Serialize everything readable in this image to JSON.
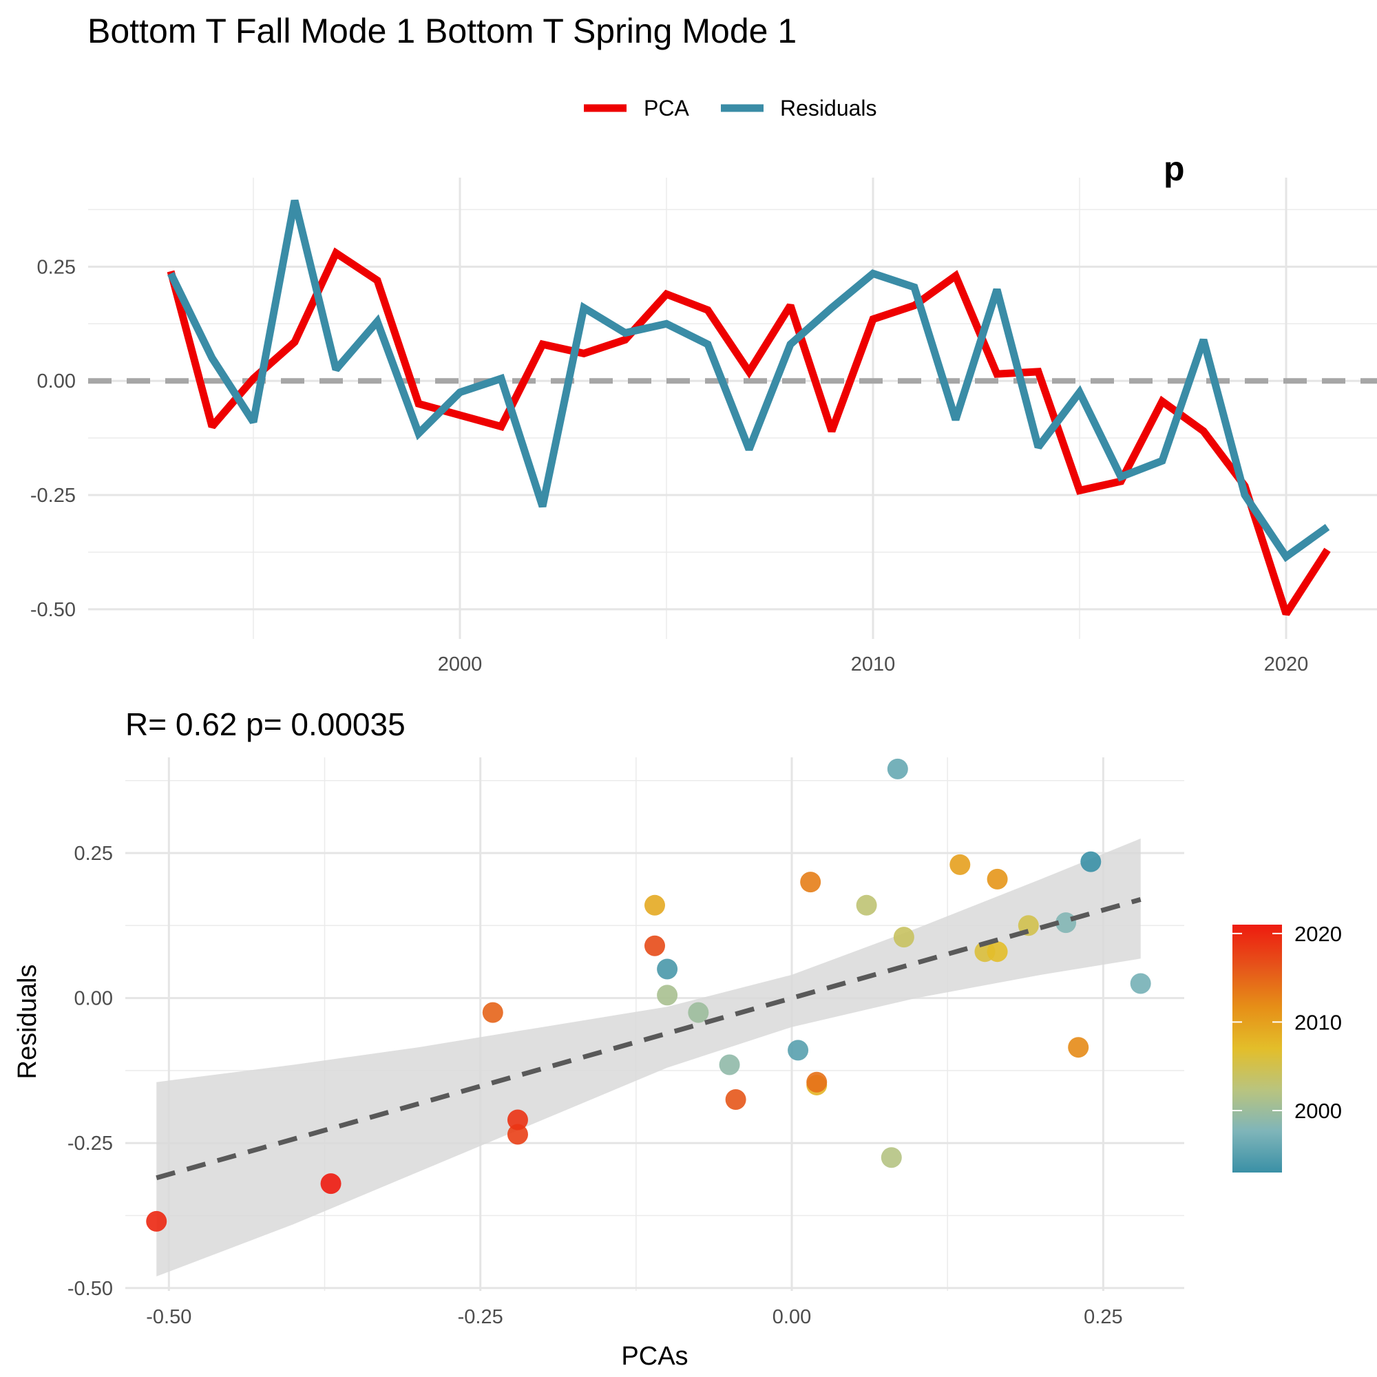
{
  "header": {
    "title": "Bottom T Fall Mode 1 Bottom T Spring Mode 1"
  },
  "chart_data": [
    {
      "type": "line",
      "title": "Bottom T Fall Mode 1 Bottom T Spring Mode 1",
      "xlabel": "",
      "ylabel": "",
      "grid": true,
      "legend_position": "top",
      "xlim": [
        1991,
        2022.2
      ],
      "ylim": [
        -0.565,
        0.445
      ],
      "x_ticks": [
        2000,
        2010,
        2020
      ],
      "x_tick_labels": [
        "2000",
        "2010",
        "2020"
      ],
      "y_ticks": [
        0.25,
        0.0,
        -0.25,
        -0.5
      ],
      "y_tick_labels": [
        "0.25",
        "0.00",
        "-0.25",
        "-0.50"
      ],
      "reference_line": {
        "y": 0,
        "style": "dashed",
        "color": "#a6a6a6"
      },
      "x": [
        1993,
        1994,
        1995,
        1996,
        1997,
        1998,
        1999,
        2000,
        2001,
        2002,
        2003,
        2004,
        2005,
        2006,
        2007,
        2008,
        2009,
        2010,
        2011,
        2012,
        2013,
        2014,
        2015,
        2016,
        2017,
        2018,
        2019,
        2020,
        2021
      ],
      "series": [
        {
          "name": "PCA",
          "color": "#ee0000",
          "values": [
            0.24,
            -0.1,
            0.005,
            0.085,
            0.28,
            0.22,
            -0.05,
            -0.075,
            -0.1,
            0.08,
            0.06,
            0.09,
            0.19,
            0.155,
            0.02,
            0.165,
            -0.11,
            0.135,
            0.165,
            0.23,
            0.015,
            0.02,
            -0.24,
            -0.22,
            -0.045,
            -0.11,
            -0.23,
            -0.51,
            -0.37
          ]
        },
        {
          "name": "Residuals",
          "color": "#3a8ca6",
          "values": [
            0.235,
            0.05,
            -0.09,
            0.395,
            0.025,
            0.13,
            -0.115,
            -0.025,
            0.005,
            -0.275,
            0.16,
            0.105,
            0.125,
            0.08,
            -0.15,
            0.08,
            0.16,
            0.235,
            0.205,
            -0.085,
            0.2,
            -0.145,
            -0.025,
            -0.21,
            -0.175,
            0.09,
            -0.25,
            -0.385,
            -0.32
          ]
        }
      ],
      "partial_annotation": "p"
    },
    {
      "type": "scatter",
      "title": "R= 0.62  p= 0.00035",
      "xlabel": "PCAs",
      "ylabel": "Residuals",
      "grid": true,
      "xlim": [
        -0.535,
        0.315
      ],
      "ylim": [
        -0.505,
        0.415
      ],
      "x_ticks": [
        -0.5,
        -0.25,
        0.0,
        0.25
      ],
      "x_tick_labels": [
        "-0.50",
        "-0.25",
        "0.00",
        "0.25"
      ],
      "y_ticks": [
        0.25,
        0.0,
        -0.25,
        -0.5
      ],
      "y_tick_labels": [
        "0.25",
        "0.00",
        "-0.25",
        "-0.50"
      ],
      "fit_line": {
        "x": [
          -0.51,
          0.28
        ],
        "y": [
          -0.31,
          0.17
        ],
        "style": "dashed",
        "color": "#595959"
      },
      "confidence_band": {
        "x": [
          -0.51,
          -0.4,
          -0.3,
          -0.2,
          -0.1,
          0.0,
          0.1,
          0.2,
          0.28
        ],
        "upper": [
          -0.145,
          -0.115,
          -0.085,
          -0.05,
          -0.015,
          0.04,
          0.12,
          0.205,
          0.275
        ],
        "lower": [
          -0.48,
          -0.39,
          -0.3,
          -0.21,
          -0.12,
          -0.05,
          0.0,
          0.04,
          0.068
        ],
        "color": "#d9d9d9"
      },
      "points": [
        {
          "year": 1993,
          "x": 0.24,
          "y": 0.235
        },
        {
          "year": 1994,
          "x": -0.1,
          "y": 0.05
        },
        {
          "year": 1995,
          "x": 0.005,
          "y": -0.09
        },
        {
          "year": 1996,
          "x": 0.085,
          "y": 0.395
        },
        {
          "year": 1997,
          "x": 0.28,
          "y": 0.025
        },
        {
          "year": 1998,
          "x": 0.22,
          "y": 0.13
        },
        {
          "year": 1999,
          "x": -0.05,
          "y": -0.115
        },
        {
          "year": 2000,
          "x": -0.075,
          "y": -0.025
        },
        {
          "year": 2001,
          "x": -0.1,
          "y": 0.005
        },
        {
          "year": 2002,
          "x": 0.08,
          "y": -0.275
        },
        {
          "year": 2003,
          "x": 0.06,
          "y": 0.16
        },
        {
          "year": 2004,
          "x": 0.09,
          "y": 0.105
        },
        {
          "year": 2005,
          "x": 0.19,
          "y": 0.125
        },
        {
          "year": 2006,
          "x": 0.155,
          "y": 0.08
        },
        {
          "year": 2007,
          "x": 0.165,
          "y": 0.08
        },
        {
          "year": 2008,
          "x": 0.02,
          "y": -0.15
        },
        {
          "year": 2009,
          "x": -0.11,
          "y": 0.16
        },
        {
          "year": 2010,
          "x": 0.135,
          "y": 0.23
        },
        {
          "year": 2011,
          "x": 0.165,
          "y": 0.205
        },
        {
          "year": 2012,
          "x": 0.23,
          "y": -0.085
        },
        {
          "year": 2013,
          "x": 0.015,
          "y": 0.2
        },
        {
          "year": 2014,
          "x": 0.02,
          "y": -0.145
        },
        {
          "year": 2015,
          "x": -0.24,
          "y": -0.025
        },
        {
          "year": 2016,
          "x": -0.045,
          "y": -0.175
        },
        {
          "year": 2017,
          "x": -0.11,
          "y": 0.09
        },
        {
          "year": 2018,
          "x": -0.22,
          "y": -0.235
        },
        {
          "year": 2019,
          "x": -0.22,
          "y": -0.21
        },
        {
          "year": 2020,
          "x": -0.51,
          "y": -0.385
        },
        {
          "year": 2021,
          "x": -0.37,
          "y": -0.32
        }
      ],
      "colorbar": {
        "title": "",
        "range": [
          1993,
          2021
        ],
        "ticks": [
          2000,
          2010,
          2020
        ],
        "tick_labels": [
          "2000",
          "2010",
          "2020"
        ],
        "stops": [
          "#3a90a6",
          "#7fb5b9",
          "#b9c47f",
          "#e3be2a",
          "#e68f17",
          "#e6531a",
          "#ee1b0f"
        ]
      }
    }
  ]
}
